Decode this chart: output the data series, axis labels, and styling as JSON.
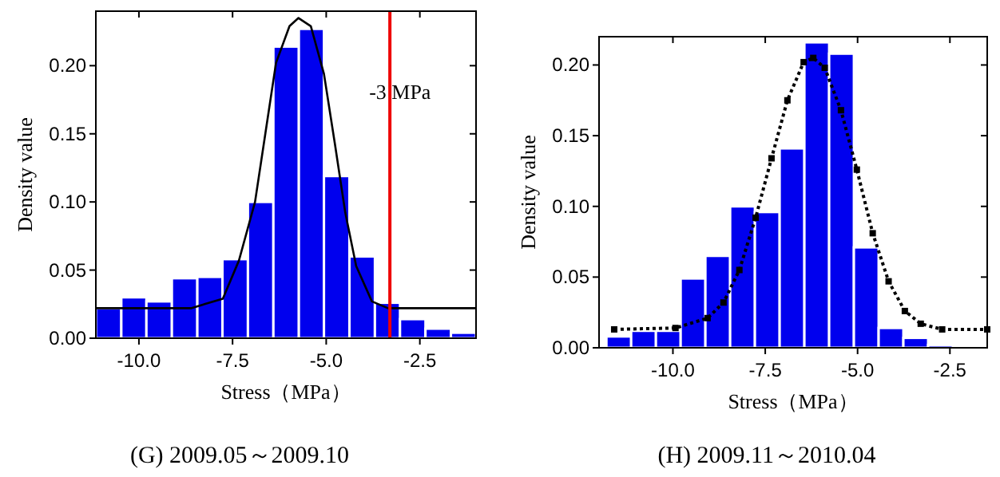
{
  "chart_data": [
    {
      "type": "histogram",
      "title": "(G) 2009.05～2009.10",
      "xlabel": "Stress（MPa）",
      "ylabel": "Density value",
      "color": "#0000ee",
      "bins": [
        -11.15,
        -10.47,
        -9.8,
        -9.12,
        -8.44,
        -7.77,
        -7.09,
        -6.41,
        -5.73,
        -5.06,
        -4.38,
        -3.7,
        -3.03,
        -2.35,
        -1.67,
        -1.0
      ],
      "values": [
        0.022,
        0.03,
        0.027,
        0.044,
        0.045,
        0.058,
        0.1,
        0.214,
        0.227,
        0.119,
        0.06,
        0.026,
        0.014,
        0.007,
        0.004
      ],
      "series": [
        {
          "type": "line",
          "color": "#000000",
          "line_style": "solid",
          "marker": "none",
          "x": [
            -11.15,
            -8.61,
            -7.76,
            -7.33,
            -6.9,
            -6.62,
            -6.34,
            -5.98,
            -5.74,
            -5.41,
            -5.06,
            -4.77,
            -4.49,
            -4.2,
            -3.78,
            -3.35,
            -1.0
          ],
          "values": [
            0.022,
            0.022,
            0.029,
            0.057,
            0.1,
            0.151,
            0.202,
            0.229,
            0.235,
            0.229,
            0.194,
            0.143,
            0.092,
            0.053,
            0.027,
            0.022,
            0.022
          ]
        }
      ],
      "ref_lines": [
        {
          "axis": "x",
          "value": -3.3,
          "label": "-3 MPa",
          "color": "#ee0000",
          "line_style": "solid"
        }
      ],
      "xlim": [
        -11.15,
        -1.0
      ],
      "ylim": [
        0,
        0.24
      ],
      "xticks": [
        {
          "value": -10,
          "label": "-10.0"
        },
        {
          "value": -7.5,
          "label": "-7.5"
        },
        {
          "value": -5,
          "label": "-5.0"
        },
        {
          "value": -2.5,
          "label": "-2.5"
        }
      ],
      "yticks": [
        {
          "value": 0,
          "label": "0.00"
        },
        {
          "value": 0.05,
          "label": "0.05"
        },
        {
          "value": 0.1,
          "label": "0.10"
        },
        {
          "value": 0.15,
          "label": "0.15"
        },
        {
          "value": 0.2,
          "label": "0.20"
        }
      ],
      "grid": false
    },
    {
      "type": "histogram",
      "title": "(H) 2009.11～2010.04",
      "xlabel": "Stress（MPa）",
      "ylabel": "Density value",
      "color": "#0000ee",
      "bins": [
        -11.8,
        -11.13,
        -10.46,
        -9.79,
        -9.12,
        -8.45,
        -7.78,
        -7.11,
        -6.44,
        -5.77,
        -5.1,
        -4.43,
        -3.76,
        -3.09,
        -2.42
      ],
      "values": [
        0.008,
        0.012,
        0.012,
        0.049,
        0.065,
        0.1,
        0.096,
        0.141,
        0.216,
        0.208,
        0.071,
        0.014,
        0.007,
        0.002
      ],
      "series": [
        {
          "type": "line",
          "color": "#000000",
          "line_style": "dotted",
          "marker": "square",
          "x": [
            -11.59,
            -9.93,
            -9.06,
            -8.63,
            -8.2,
            -7.76,
            -7.33,
            -6.9,
            -6.46,
            -6.2,
            -5.89,
            -5.45,
            -5.02,
            -4.59,
            -4.16,
            -3.72,
            -3.29,
            -2.71,
            -1.49
          ],
          "values": [
            0.013,
            0.014,
            0.021,
            0.032,
            0.055,
            0.092,
            0.134,
            0.175,
            0.202,
            0.205,
            0.198,
            0.168,
            0.126,
            0.081,
            0.047,
            0.026,
            0.017,
            0.013,
            0.013
          ]
        }
      ],
      "xlim": [
        -12.0,
        -1.49
      ],
      "ylim": [
        0,
        0.22
      ],
      "xticks": [
        {
          "value": -10,
          "label": "-10.0"
        },
        {
          "value": -7.5,
          "label": "-7.5"
        },
        {
          "value": -5,
          "label": "-5.0"
        },
        {
          "value": -2.5,
          "label": "-2.5"
        }
      ],
      "yticks": [
        {
          "value": 0,
          "label": "0.00"
        },
        {
          "value": 0.05,
          "label": "0.05"
        },
        {
          "value": 0.1,
          "label": "0.10"
        },
        {
          "value": 0.15,
          "label": "0.15"
        },
        {
          "value": 0.2,
          "label": "0.20"
        }
      ],
      "grid": false
    }
  ]
}
